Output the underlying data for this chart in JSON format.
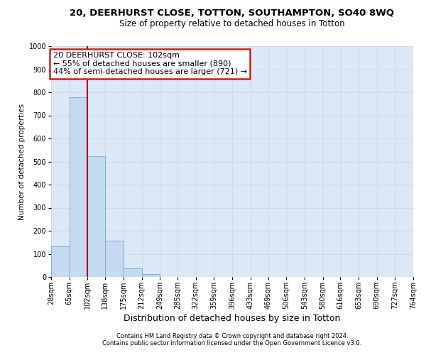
{
  "title": "20, DEERHURST CLOSE, TOTTON, SOUTHAMPTON, SO40 8WQ",
  "subtitle": "Size of property relative to detached houses in Totton",
  "xlabel": "Distribution of detached houses by size in Totton",
  "ylabel": "Number of detached properties",
  "bin_edges": [
    28,
    65,
    102,
    138,
    175,
    212,
    249,
    285,
    322,
    359,
    396,
    433,
    469,
    506,
    543,
    580,
    616,
    653,
    690,
    727,
    764
  ],
  "bar_heights": [
    133,
    779,
    524,
    157,
    38,
    13,
    0,
    0,
    0,
    0,
    0,
    0,
    0,
    0,
    0,
    0,
    0,
    0,
    0,
    0
  ],
  "property_size": 102,
  "bar_color": "#c5d9f0",
  "bar_edge_color": "#7bafd4",
  "vline_color": "#aa1111",
  "annotation_line1": "20 DEERHURST CLOSE: 102sqm",
  "annotation_line2": "← 55% of detached houses are smaller (890)",
  "annotation_line3": "44% of semi-detached houses are larger (721) →",
  "annotation_box_facecolor": "white",
  "annotation_box_edgecolor": "#cc2222",
  "footnote1": "Contains HM Land Registry data © Crown copyright and database right 2024.",
  "footnote2": "Contains public sector information licensed under the Open Government Licence v3.0.",
  "ylim": [
    0,
    1000
  ],
  "yticks": [
    0,
    100,
    200,
    300,
    400,
    500,
    600,
    700,
    800,
    900,
    1000
  ],
  "grid_color": "#d0dae8",
  "bg_color": "#dce8f5",
  "fig_bg": "white",
  "title_fontsize": 9.5,
  "subtitle_fontsize": 8.5,
  "xlabel_fontsize": 9,
  "ylabel_fontsize": 7.5,
  "tick_fontsize": 7,
  "footnote_fontsize": 6,
  "annot_fontsize": 8
}
